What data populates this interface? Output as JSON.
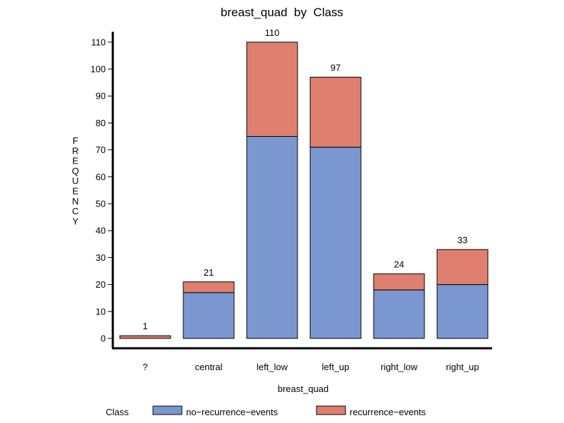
{
  "chart_data": {
    "type": "bar",
    "stacked": true,
    "title": "breast_quad  by  Class",
    "xlabel": "breast_quad",
    "ylabel": "FREQUENCY",
    "categories": [
      "?",
      "central",
      "left_low",
      "left_up",
      "right_low",
      "right_up"
    ],
    "series": [
      {
        "name": "no−recurrence−events",
        "color": "#7b97cf",
        "values": [
          0,
          17,
          75,
          71,
          18,
          20
        ]
      },
      {
        "name": "recurrence−events",
        "color": "#df7f70",
        "values": [
          1,
          4,
          35,
          26,
          6,
          13
        ]
      }
    ],
    "totals": [
      1,
      21,
      110,
      97,
      24,
      33
    ],
    "yticks": [
      0,
      10,
      20,
      30,
      40,
      50,
      60,
      70,
      80,
      90,
      100,
      110
    ],
    "ylim": [
      0,
      110
    ],
    "grid": false,
    "legend": {
      "title": "Class",
      "placement": "bottom"
    }
  }
}
